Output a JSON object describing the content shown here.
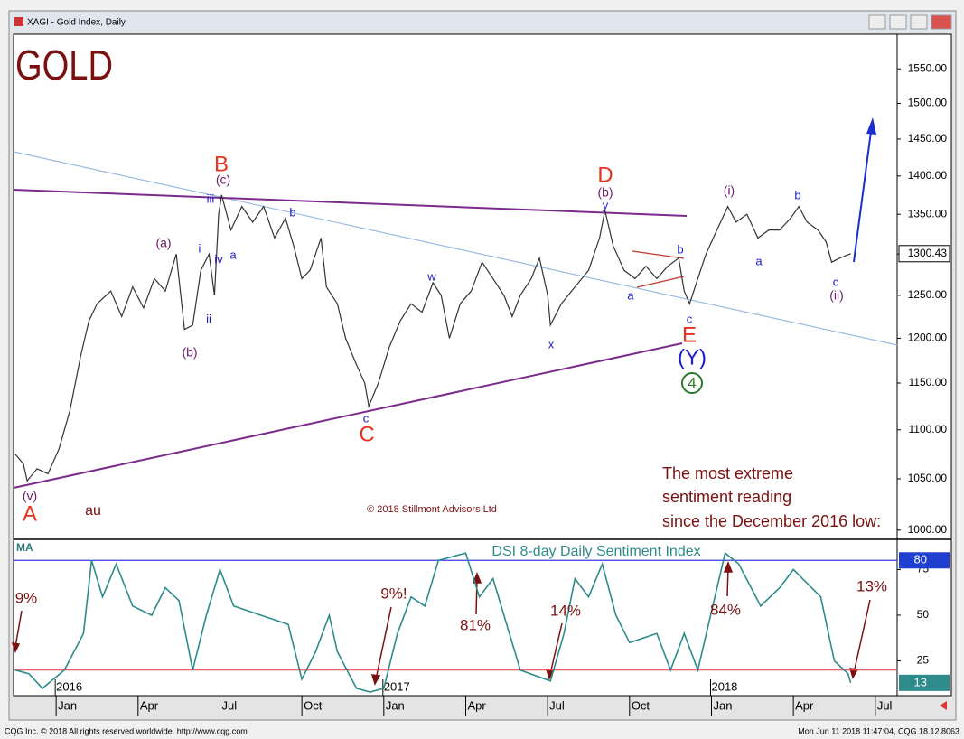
{
  "window": {
    "title": "XAGI - Gold Index, Daily"
  },
  "footer": {
    "left": "CQG Inc. © 2018 All rights reserved worldwide. http://www.cqg.com",
    "right": "Mon Jun 11 2018 11:47:04, CQG 18.12.8063"
  },
  "chart_data": [
    {
      "type": "line",
      "title": "GOLD",
      "log_scale": true,
      "color": "#333333",
      "x": [
        -1.5,
        -1.2,
        -1.06,
        -0.7,
        -0.3,
        0.1,
        0.5,
        0.9,
        1.2,
        1.5,
        2.0,
        2.4,
        2.8,
        3.2,
        3.6,
        4.0,
        4.4,
        4.7,
        5.0,
        5.3,
        5.6,
        5.8,
        5.95,
        6.06,
        6.4,
        6.8,
        7.2,
        7.6,
        8.0,
        8.4,
        8.7,
        9.0,
        9.3,
        9.7,
        9.9,
        10.3,
        10.6,
        11.0,
        11.3,
        11.45,
        11.8,
        12.2,
        12.6,
        13.0,
        13.4,
        13.8,
        14.1,
        14.4,
        14.8,
        15.2,
        15.6,
        16.0,
        16.4,
        16.7,
        17.0,
        17.4,
        17.7,
        18.0,
        18.1,
        18.5,
        19.0,
        19.5,
        19.9,
        20.1,
        20.4,
        20.8,
        21.2,
        21.6,
        22.0,
        22.4,
        22.8,
        23.0,
        23.2,
        23.5,
        23.8,
        24.2,
        24.6,
        24.9,
        25.3,
        25.7,
        26.1,
        26.5,
        26.9,
        27.2,
        27.5,
        27.9,
        28.2,
        28.4,
        28.7,
        29.1
      ],
      "values": [
        1075,
        1065,
        1048,
        1060,
        1055,
        1080,
        1120,
        1180,
        1220,
        1240,
        1255,
        1225,
        1260,
        1235,
        1270,
        1255,
        1300,
        1210,
        1215,
        1280,
        1300,
        1250,
        1350,
        1375,
        1330,
        1360,
        1340,
        1360,
        1320,
        1345,
        1310,
        1270,
        1280,
        1320,
        1260,
        1240,
        1200,
        1170,
        1150,
        1125,
        1150,
        1190,
        1220,
        1240,
        1230,
        1265,
        1250,
        1200,
        1240,
        1255,
        1290,
        1270,
        1250,
        1225,
        1250,
        1270,
        1295,
        1250,
        1215,
        1240,
        1260,
        1280,
        1320,
        1355,
        1310,
        1280,
        1270,
        1285,
        1270,
        1285,
        1295,
        1255,
        1240,
        1270,
        1300,
        1330,
        1360,
        1340,
        1350,
        1320,
        1330,
        1330,
        1345,
        1360,
        1340,
        1330,
        1315,
        1290,
        1295,
        1300.43
      ],
      "last_value": 1300.43,
      "xlim": [
        -1.56,
        30.8
      ],
      "ylim": [
        993,
        1599
      ],
      "yticks": [
        {
          "value": 1000,
          "label": "1000.00"
        },
        {
          "value": 1050,
          "label": "1050.00"
        },
        {
          "value": 1100,
          "label": "1100.00"
        },
        {
          "value": 1150,
          "label": "1150.00"
        },
        {
          "value": 1200,
          "label": "1200.00"
        },
        {
          "value": 1250,
          "label": "1250.00"
        },
        {
          "value": 1300,
          "label": "1300.00"
        },
        {
          "value": 1350,
          "label": "1350.00"
        },
        {
          "value": 1400,
          "label": "1400.00"
        },
        {
          "value": 1450,
          "label": "1450.00"
        },
        {
          "value": 1500,
          "label": "1500.00"
        },
        {
          "value": 1550,
          "label": "1550.00"
        }
      ],
      "annotations": [
        "B",
        "(c)",
        "iii",
        "i",
        "ii",
        "iv",
        "a",
        "b",
        "(a)",
        "(b)",
        "C",
        "c",
        "w",
        "x",
        "D",
        "(b)",
        "y",
        "a",
        "b",
        "c",
        "E",
        "(Y)",
        "4",
        "(i)",
        "a",
        "b",
        "c",
        "(ii)",
        "(v)",
        "A",
        "au",
        "© 2018 Stillmont Advisors Ltd",
        "The most extreme",
        "sentiment reading",
        "since the December 2016 low:"
      ]
    },
    {
      "type": "line",
      "title": "DSI 8-day Daily Sentiment Index",
      "indicator": "MA",
      "color": "#2e8b8b",
      "x": [
        -1.5,
        -1,
        -0.5,
        0.3,
        1,
        1.3,
        1.7,
        2.2,
        2.8,
        3.5,
        4,
        4.5,
        5,
        5.5,
        6,
        6.5,
        7.5,
        8.5,
        9,
        9.5,
        10,
        10.3,
        11,
        11.5,
        12,
        12.5,
        13,
        13.5,
        14,
        15,
        15.5,
        16,
        16.5,
        17,
        18.1,
        18.6,
        19,
        19.5,
        20,
        20.5,
        21,
        22,
        22.5,
        23,
        23.5,
        24.5,
        25,
        25.8,
        26.5,
        27,
        28,
        28.5,
        29,
        29.1
      ],
      "values": [
        20,
        18,
        10,
        20,
        40,
        80,
        60,
        78,
        55,
        50,
        65,
        58,
        20,
        50,
        75,
        55,
        50,
        45,
        15,
        30,
        50,
        30,
        10,
        8,
        10,
        40,
        60,
        55,
        80,
        84,
        60,
        70,
        45,
        20,
        14,
        40,
        70,
        60,
        78,
        50,
        35,
        40,
        20,
        40,
        20,
        84,
        78,
        55,
        65,
        75,
        60,
        25,
        18,
        13
      ],
      "last_value": 13,
      "upper_level": 80,
      "lower_level": 20,
      "xlim": [
        -1.56,
        30.8
      ],
      "ylim": [
        6,
        91
      ],
      "yticks": [
        25,
        50,
        75
      ],
      "xticks": [
        {
          "value": 0,
          "label": "Jan"
        },
        {
          "value": 3,
          "label": "Apr"
        },
        {
          "value": 6,
          "label": "Jul"
        },
        {
          "value": 9,
          "label": "Oct"
        },
        {
          "value": 12,
          "label": "Jan"
        },
        {
          "value": 15,
          "label": "Apr"
        },
        {
          "value": 18,
          "label": "Jul"
        },
        {
          "value": 21,
          "label": "Oct"
        },
        {
          "value": 24,
          "label": "Jan"
        },
        {
          "value": 27,
          "label": "Apr"
        },
        {
          "value": 30,
          "label": "Jul"
        }
      ],
      "year_ticks": [
        {
          "value": 0,
          "label": "2016"
        },
        {
          "value": 12,
          "label": "2017"
        },
        {
          "value": 24,
          "label": "2018"
        }
      ],
      "annotations": [
        "9%",
        "9%!",
        "81%",
        "14%",
        "84%",
        "13%"
      ]
    }
  ]
}
